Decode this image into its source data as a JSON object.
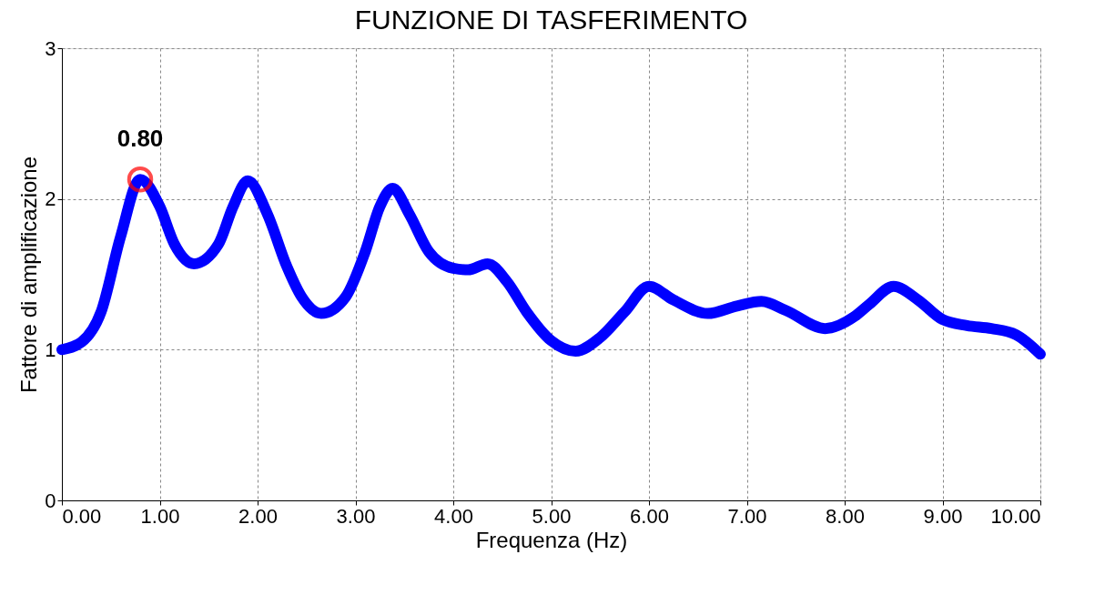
{
  "chart_data": {
    "type": "line",
    "title": "FUNZIONE DI TASFERIMENTO",
    "xlabel": "Frequenza (Hz)",
    "ylabel": "Fattore di amplificazione",
    "series": [
      {
        "color": "#0000ff",
        "x": [
          0,
          0.2,
          0.4,
          0.6,
          0.8,
          1.0,
          1.15,
          1.35,
          1.6,
          1.75,
          1.9,
          2.1,
          2.3,
          2.45,
          2.65,
          2.9,
          3.1,
          3.25,
          3.38,
          3.55,
          3.75,
          4.0,
          4.15,
          4.35,
          4.55,
          4.75,
          5.0,
          5.25,
          5.5,
          5.75,
          6.0,
          6.25,
          6.6,
          6.9,
          7.15,
          7.4,
          7.8,
          8.1,
          8.25,
          8.5,
          8.75,
          9.0,
          9.25,
          9.5,
          9.75,
          10.0
        ],
        "values": [
          1.0,
          1.05,
          1.25,
          1.75,
          2.13,
          1.95,
          1.7,
          1.57,
          1.7,
          1.95,
          2.12,
          1.9,
          1.55,
          1.35,
          1.24,
          1.35,
          1.65,
          1.95,
          2.07,
          1.9,
          1.65,
          1.54,
          1.53,
          1.57,
          1.45,
          1.25,
          1.06,
          0.99,
          1.08,
          1.25,
          1.42,
          1.33,
          1.24,
          1.29,
          1.32,
          1.26,
          1.14,
          1.22,
          1.3,
          1.42,
          1.33,
          1.2,
          1.16,
          1.14,
          1.1,
          0.97
        ]
      }
    ],
    "annotations": [
      {
        "text": "0.80",
        "x": 0.8,
        "y": 2.13
      }
    ],
    "xlim": [
      0,
      10
    ],
    "ylim": [
      0,
      3
    ],
    "xticks": [
      {
        "value": 0,
        "label": "0.00"
      },
      {
        "value": 1,
        "label": "1.00"
      },
      {
        "value": 2,
        "label": "2.00"
      },
      {
        "value": 3,
        "label": "3.00"
      },
      {
        "value": 4,
        "label": "4.00"
      },
      {
        "value": 5,
        "label": "5.00"
      },
      {
        "value": 6,
        "label": "6.00"
      },
      {
        "value": 7,
        "label": "7.00"
      },
      {
        "value": 8,
        "label": "8.00"
      },
      {
        "value": 9,
        "label": "9.00"
      },
      {
        "value": 10,
        "label": "10.00"
      }
    ],
    "yticks": [
      0,
      1,
      2,
      3
    ],
    "grid": true,
    "line_style": "solid"
  }
}
